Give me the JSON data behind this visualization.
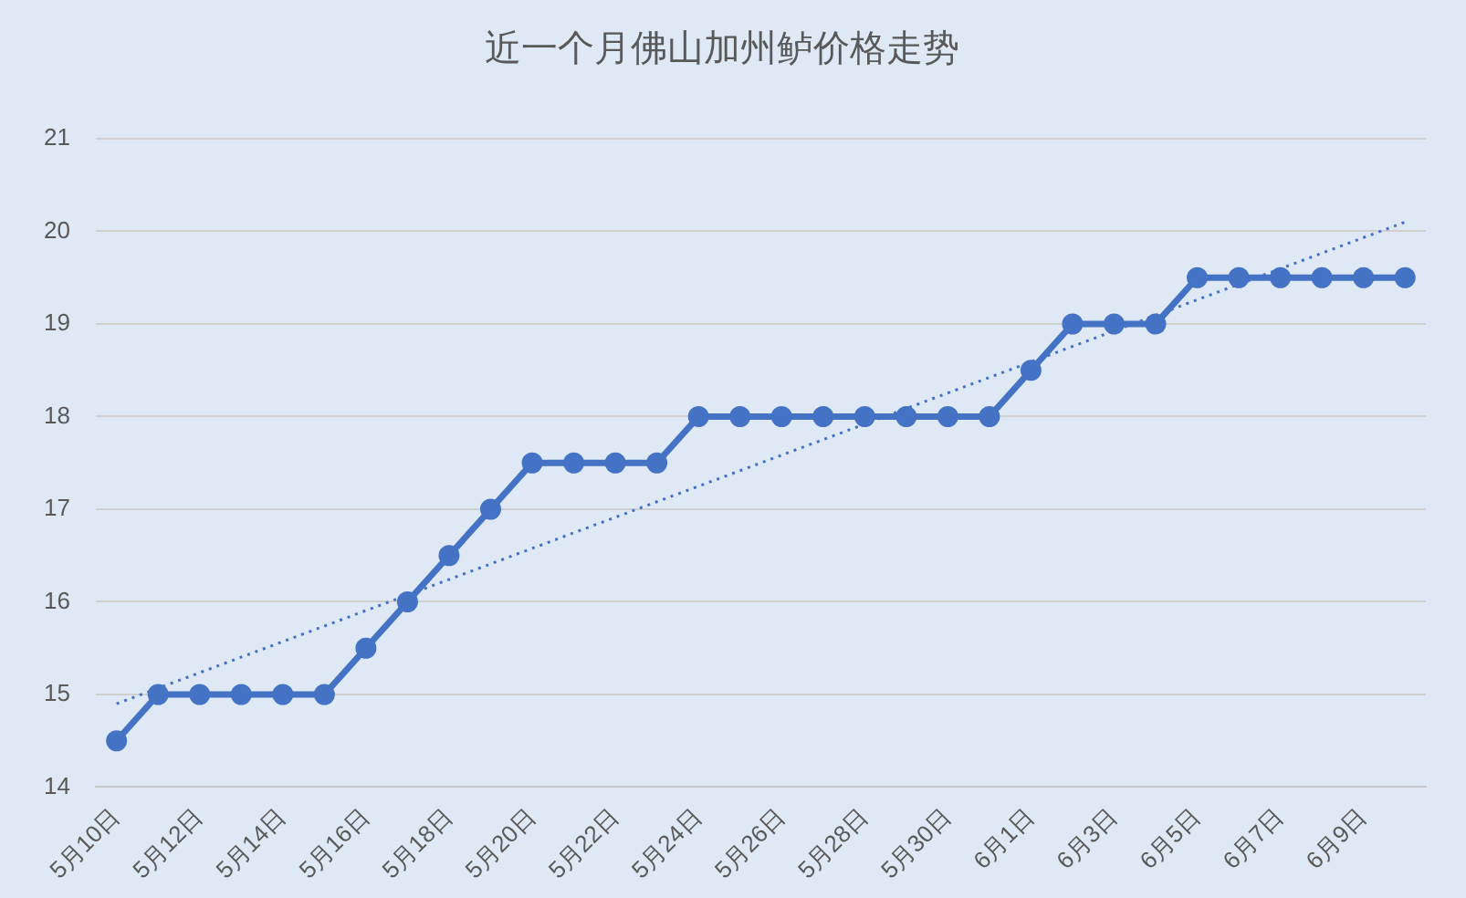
{
  "chart_data": {
    "type": "line",
    "title": "近一个月佛山加州鲈价格走势",
    "categories": [
      "5月10日",
      null,
      "5月12日",
      null,
      "5月14日",
      null,
      "5月16日",
      null,
      "5月18日",
      null,
      "5月20日",
      null,
      "5月22日",
      null,
      "5月24日",
      null,
      "5月26日",
      null,
      "5月28日",
      null,
      "5月30日",
      null,
      "6月1日",
      null,
      "6月3日",
      null,
      "6月5日",
      null,
      "6月7日",
      null,
      "6月9日",
      null
    ],
    "series": [
      {
        "color": "#4472c4",
        "marker": "circle",
        "line_style": "solid",
        "values": [
          14.5,
          15,
          15,
          15,
          15,
          15,
          15.5,
          16,
          16.5,
          17,
          17.5,
          17.5,
          17.5,
          17.5,
          18,
          18,
          18,
          18,
          18,
          18,
          18,
          18,
          18.5,
          19,
          19,
          19,
          19.5,
          19.5,
          19.5,
          19.5,
          19.5,
          19.5
        ]
      },
      {
        "type": "line",
        "color": "#4472c4",
        "marker": "none",
        "line_style": "dotted",
        "values": [
          14.9,
          null,
          null,
          null,
          null,
          null,
          null,
          null,
          null,
          null,
          null,
          null,
          null,
          null,
          null,
          null,
          null,
          null,
          null,
          null,
          null,
          null,
          null,
          null,
          null,
          null,
          null,
          null,
          null,
          null,
          null,
          20.1
        ]
      }
    ],
    "ylim": [
      14,
      21
    ],
    "yticks": [
      14,
      15,
      16,
      17,
      18,
      19,
      20,
      21
    ],
    "grid": "y",
    "legend": false
  }
}
